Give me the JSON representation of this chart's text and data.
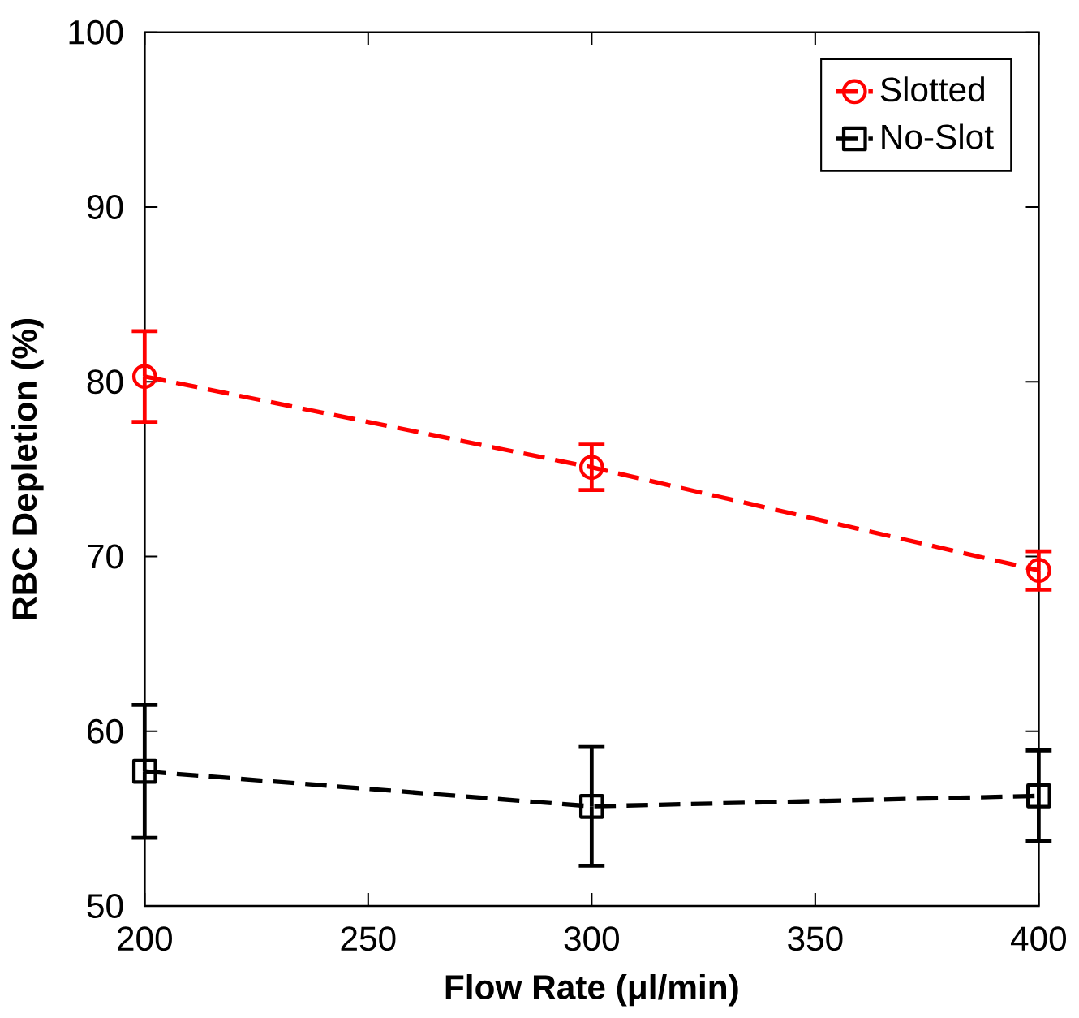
{
  "chart_data": {
    "type": "line",
    "xlabel": "Flow Rate (μl/min)",
    "ylabel": "RBC Depletion (%)",
    "x": [
      200,
      300,
      400
    ],
    "series": [
      {
        "name": "Slotted",
        "color": "#ff0000",
        "values": [
          80.3,
          75.1,
          69.2
        ],
        "errors": [
          2.6,
          1.3,
          1.1
        ],
        "marker": "circle"
      },
      {
        "name": "No-Slot",
        "color": "#000000",
        "values": [
          57.7,
          55.7,
          56.3
        ],
        "errors": [
          3.8,
          3.4,
          2.6
        ],
        "marker": "square"
      }
    ],
    "xlim": [
      200,
      400
    ],
    "xticks": [
      200,
      250,
      300,
      350,
      400
    ],
    "ylim": [
      50,
      100
    ],
    "yticks": [
      50,
      60,
      70,
      80,
      90,
      100
    ],
    "legend": "top right",
    "line_style": "dashed",
    "grid": false
  }
}
